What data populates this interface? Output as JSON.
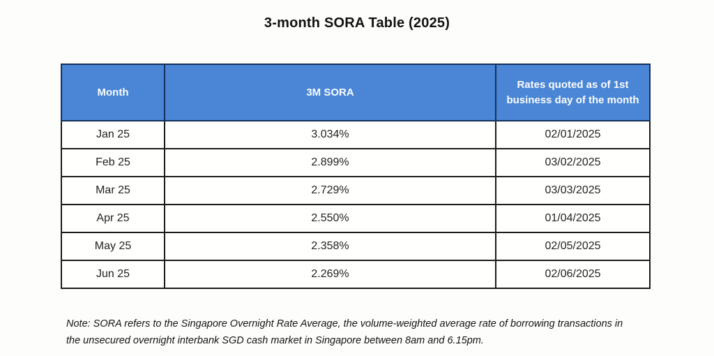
{
  "title": "3-month SORA Table (2025)",
  "table": {
    "columns": [
      "Month",
      "3M SORA",
      "Rates quoted as of 1st business day of the month"
    ],
    "rows": [
      {
        "month": "Jan 25",
        "sora": "3.034%",
        "date": "02/01/2025"
      },
      {
        "month": "Feb 25",
        "sora": "2.899%",
        "date": "03/02/2025"
      },
      {
        "month": "Mar 25",
        "sora": "2.729%",
        "date": "03/03/2025"
      },
      {
        "month": "Apr 25",
        "sora": "2.550%",
        "date": "01/04/2025"
      },
      {
        "month": "May 25",
        "sora": "2.358%",
        "date": "02/05/2025"
      },
      {
        "month": "Jun 25",
        "sora": "2.269%",
        "date": "02/06/2025"
      }
    ]
  },
  "note": "Note: SORA refers to the Singapore Overnight Rate Average, the volume-weighted average rate of borrowing transactions in the unsecured overnight interbank SGD cash market in Singapore between 8am and 6.15pm.",
  "colors": {
    "header_bg": "#4a86d5",
    "header_text": "#fbfcfe",
    "header_border": "#14305a",
    "body_border": "#1b1b1b",
    "body_text": "#222222",
    "page_bg": "#fdfdfc"
  }
}
